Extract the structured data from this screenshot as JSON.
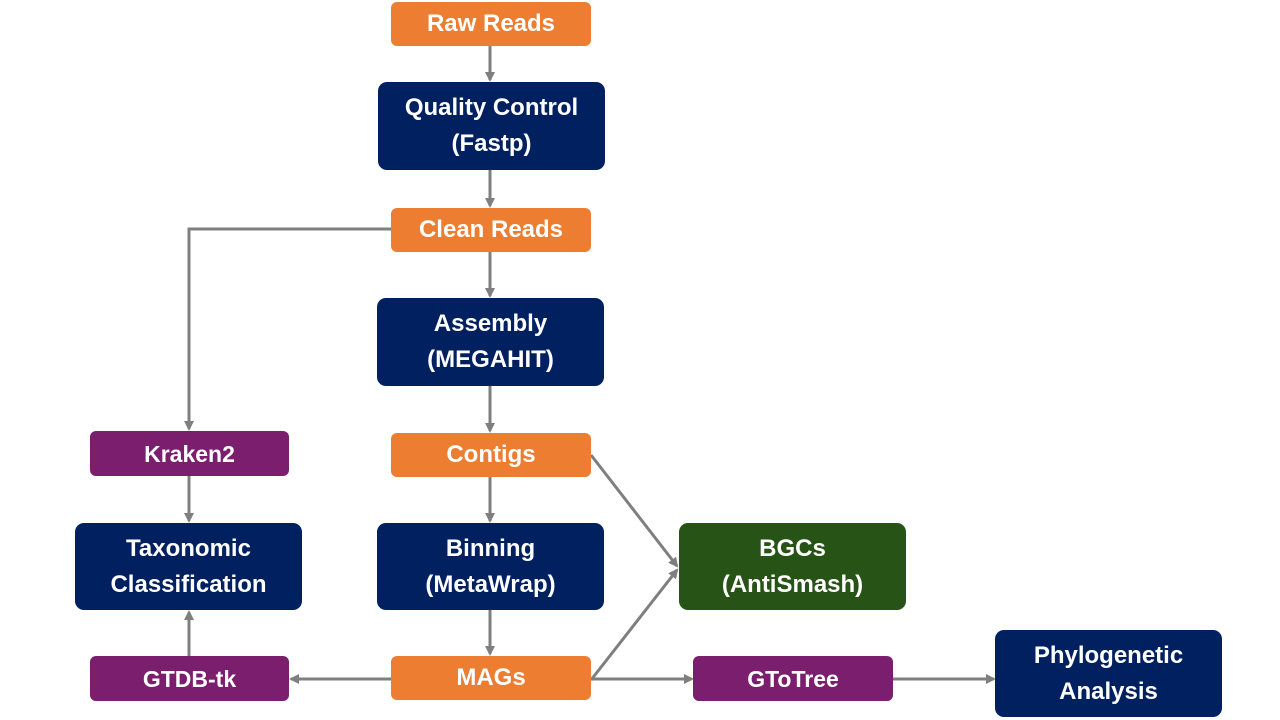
{
  "colors": {
    "data_node": "#ED7D31",
    "process_node": "#002060",
    "tool_node": "#7B1E6E",
    "output_node": "#275317",
    "arrow": "#7F7F7F"
  },
  "nodes": {
    "raw_reads": {
      "line1": "Raw Reads"
    },
    "quality_control": {
      "line1": "Quality Control",
      "line2": "(Fastp)"
    },
    "clean_reads": {
      "line1": "Clean Reads"
    },
    "assembly": {
      "line1": "Assembly",
      "line2": "(MEGAHIT)"
    },
    "contigs": {
      "line1": "Contigs"
    },
    "binning": {
      "line1": "Binning",
      "line2": "(MetaWrap)"
    },
    "mags": {
      "line1": "MAGs"
    },
    "kraken2": {
      "line1": "Kraken2"
    },
    "taxonomic_classification": {
      "line1": "Taxonomic",
      "line2": "Classification"
    },
    "gtdb_tk": {
      "line1": "GTDB-tk"
    },
    "bgcs": {
      "line1": "BGCs",
      "line2": "(AntiSmash)"
    },
    "gtotree": {
      "line1": "GToTree"
    },
    "phylogenetic_analysis": {
      "line1": "Phylogenetic",
      "line2": "Analysis"
    }
  },
  "edges": [
    {
      "from": "raw_reads",
      "to": "quality_control"
    },
    {
      "from": "quality_control",
      "to": "clean_reads"
    },
    {
      "from": "clean_reads",
      "to": "assembly"
    },
    {
      "from": "clean_reads",
      "to": "kraken2"
    },
    {
      "from": "assembly",
      "to": "contigs"
    },
    {
      "from": "contigs",
      "to": "binning"
    },
    {
      "from": "contigs",
      "to": "bgcs"
    },
    {
      "from": "binning",
      "to": "mags"
    },
    {
      "from": "mags",
      "to": "bgcs"
    },
    {
      "from": "mags",
      "to": "gtdb_tk"
    },
    {
      "from": "mags",
      "to": "gtotree"
    },
    {
      "from": "kraken2",
      "to": "taxonomic_classification"
    },
    {
      "from": "gtdb_tk",
      "to": "taxonomic_classification"
    },
    {
      "from": "gtotree",
      "to": "phylogenetic_analysis"
    }
  ]
}
